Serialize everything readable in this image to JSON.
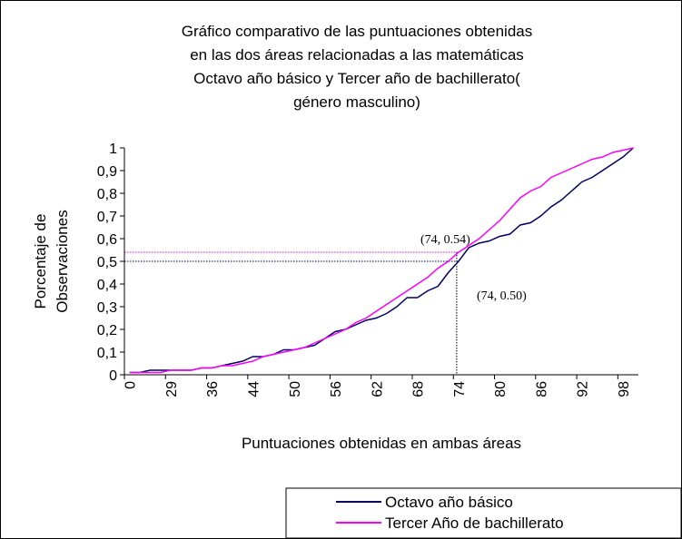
{
  "chart_data": {
    "type": "line",
    "title": [
      "Gráfico comparativo de las puntuaciones obtenidas",
      "en las dos áreas relacionadas a las matemáticas",
      "Octavo año básico y Tercer año de bachillerato(",
      "género masculino)"
    ],
    "xlabel": "Puntuaciones obtenidas en ambas áreas",
    "ylabel": [
      "Porcentaje de",
      "Observaciones"
    ],
    "categories": [
      "0",
      null,
      null,
      null,
      "29",
      null,
      null,
      null,
      "36",
      null,
      null,
      null,
      "44",
      null,
      null,
      null,
      "50",
      null,
      null,
      null,
      "56",
      null,
      null,
      null,
      "62",
      null,
      null,
      null,
      "68",
      null,
      null,
      null,
      "74",
      null,
      null,
      null,
      "80",
      null,
      null,
      null,
      "86",
      null,
      null,
      null,
      "92",
      null,
      null,
      null,
      "98",
      null
    ],
    "series": [
      {
        "name": "Octavo año básico",
        "color": "#000066",
        "values": [
          0.01,
          0.01,
          0.02,
          0.02,
          0.02,
          0.02,
          0.02,
          0.03,
          0.03,
          0.04,
          0.05,
          0.06,
          0.08,
          0.08,
          0.09,
          0.11,
          0.11,
          0.12,
          0.13,
          0.16,
          0.19,
          0.2,
          0.22,
          0.24,
          0.25,
          0.27,
          0.3,
          0.34,
          0.34,
          0.37,
          0.39,
          0.45,
          0.5,
          0.56,
          0.58,
          0.59,
          0.61,
          0.62,
          0.66,
          0.67,
          0.7,
          0.74,
          0.77,
          0.81,
          0.85,
          0.87,
          0.9,
          0.93,
          0.96,
          1.0
        ]
      },
      {
        "name": "Tercer Año de bachillerato",
        "color": "#ff00ff",
        "values": [
          0.01,
          0.01,
          0.01,
          0.01,
          0.02,
          0.02,
          0.02,
          0.03,
          0.03,
          0.04,
          0.04,
          0.05,
          0.06,
          0.08,
          0.09,
          0.1,
          0.11,
          0.12,
          0.14,
          0.16,
          0.18,
          0.2,
          0.23,
          0.25,
          0.28,
          0.31,
          0.34,
          0.37,
          0.4,
          0.43,
          0.47,
          0.5,
          0.54,
          0.57,
          0.6,
          0.64,
          0.68,
          0.73,
          0.78,
          0.81,
          0.83,
          0.87,
          0.89,
          0.91,
          0.93,
          0.95,
          0.96,
          0.98,
          0.99,
          1.0
        ]
      }
    ],
    "annotations": [
      "(74, 0.54)",
      "(74, 0.50)"
    ],
    "ylim": [
      0,
      1
    ],
    "yticks": [
      0,
      {
        "value": 0.1,
        "label": "0,1"
      },
      {
        "value": 0.2,
        "label": "0,2"
      },
      {
        "value": 0.3,
        "label": "0,3"
      },
      {
        "value": 0.4,
        "label": "0,4"
      },
      {
        "value": 0.5,
        "label": "0,5"
      },
      {
        "value": 0.6,
        "label": "0,6"
      },
      {
        "value": 0.7,
        "label": "0,7"
      },
      {
        "value": 0.8,
        "label": "0,8"
      },
      {
        "value": 0.9,
        "label": "0,9"
      },
      1
    ],
    "legend": "lower right"
  }
}
